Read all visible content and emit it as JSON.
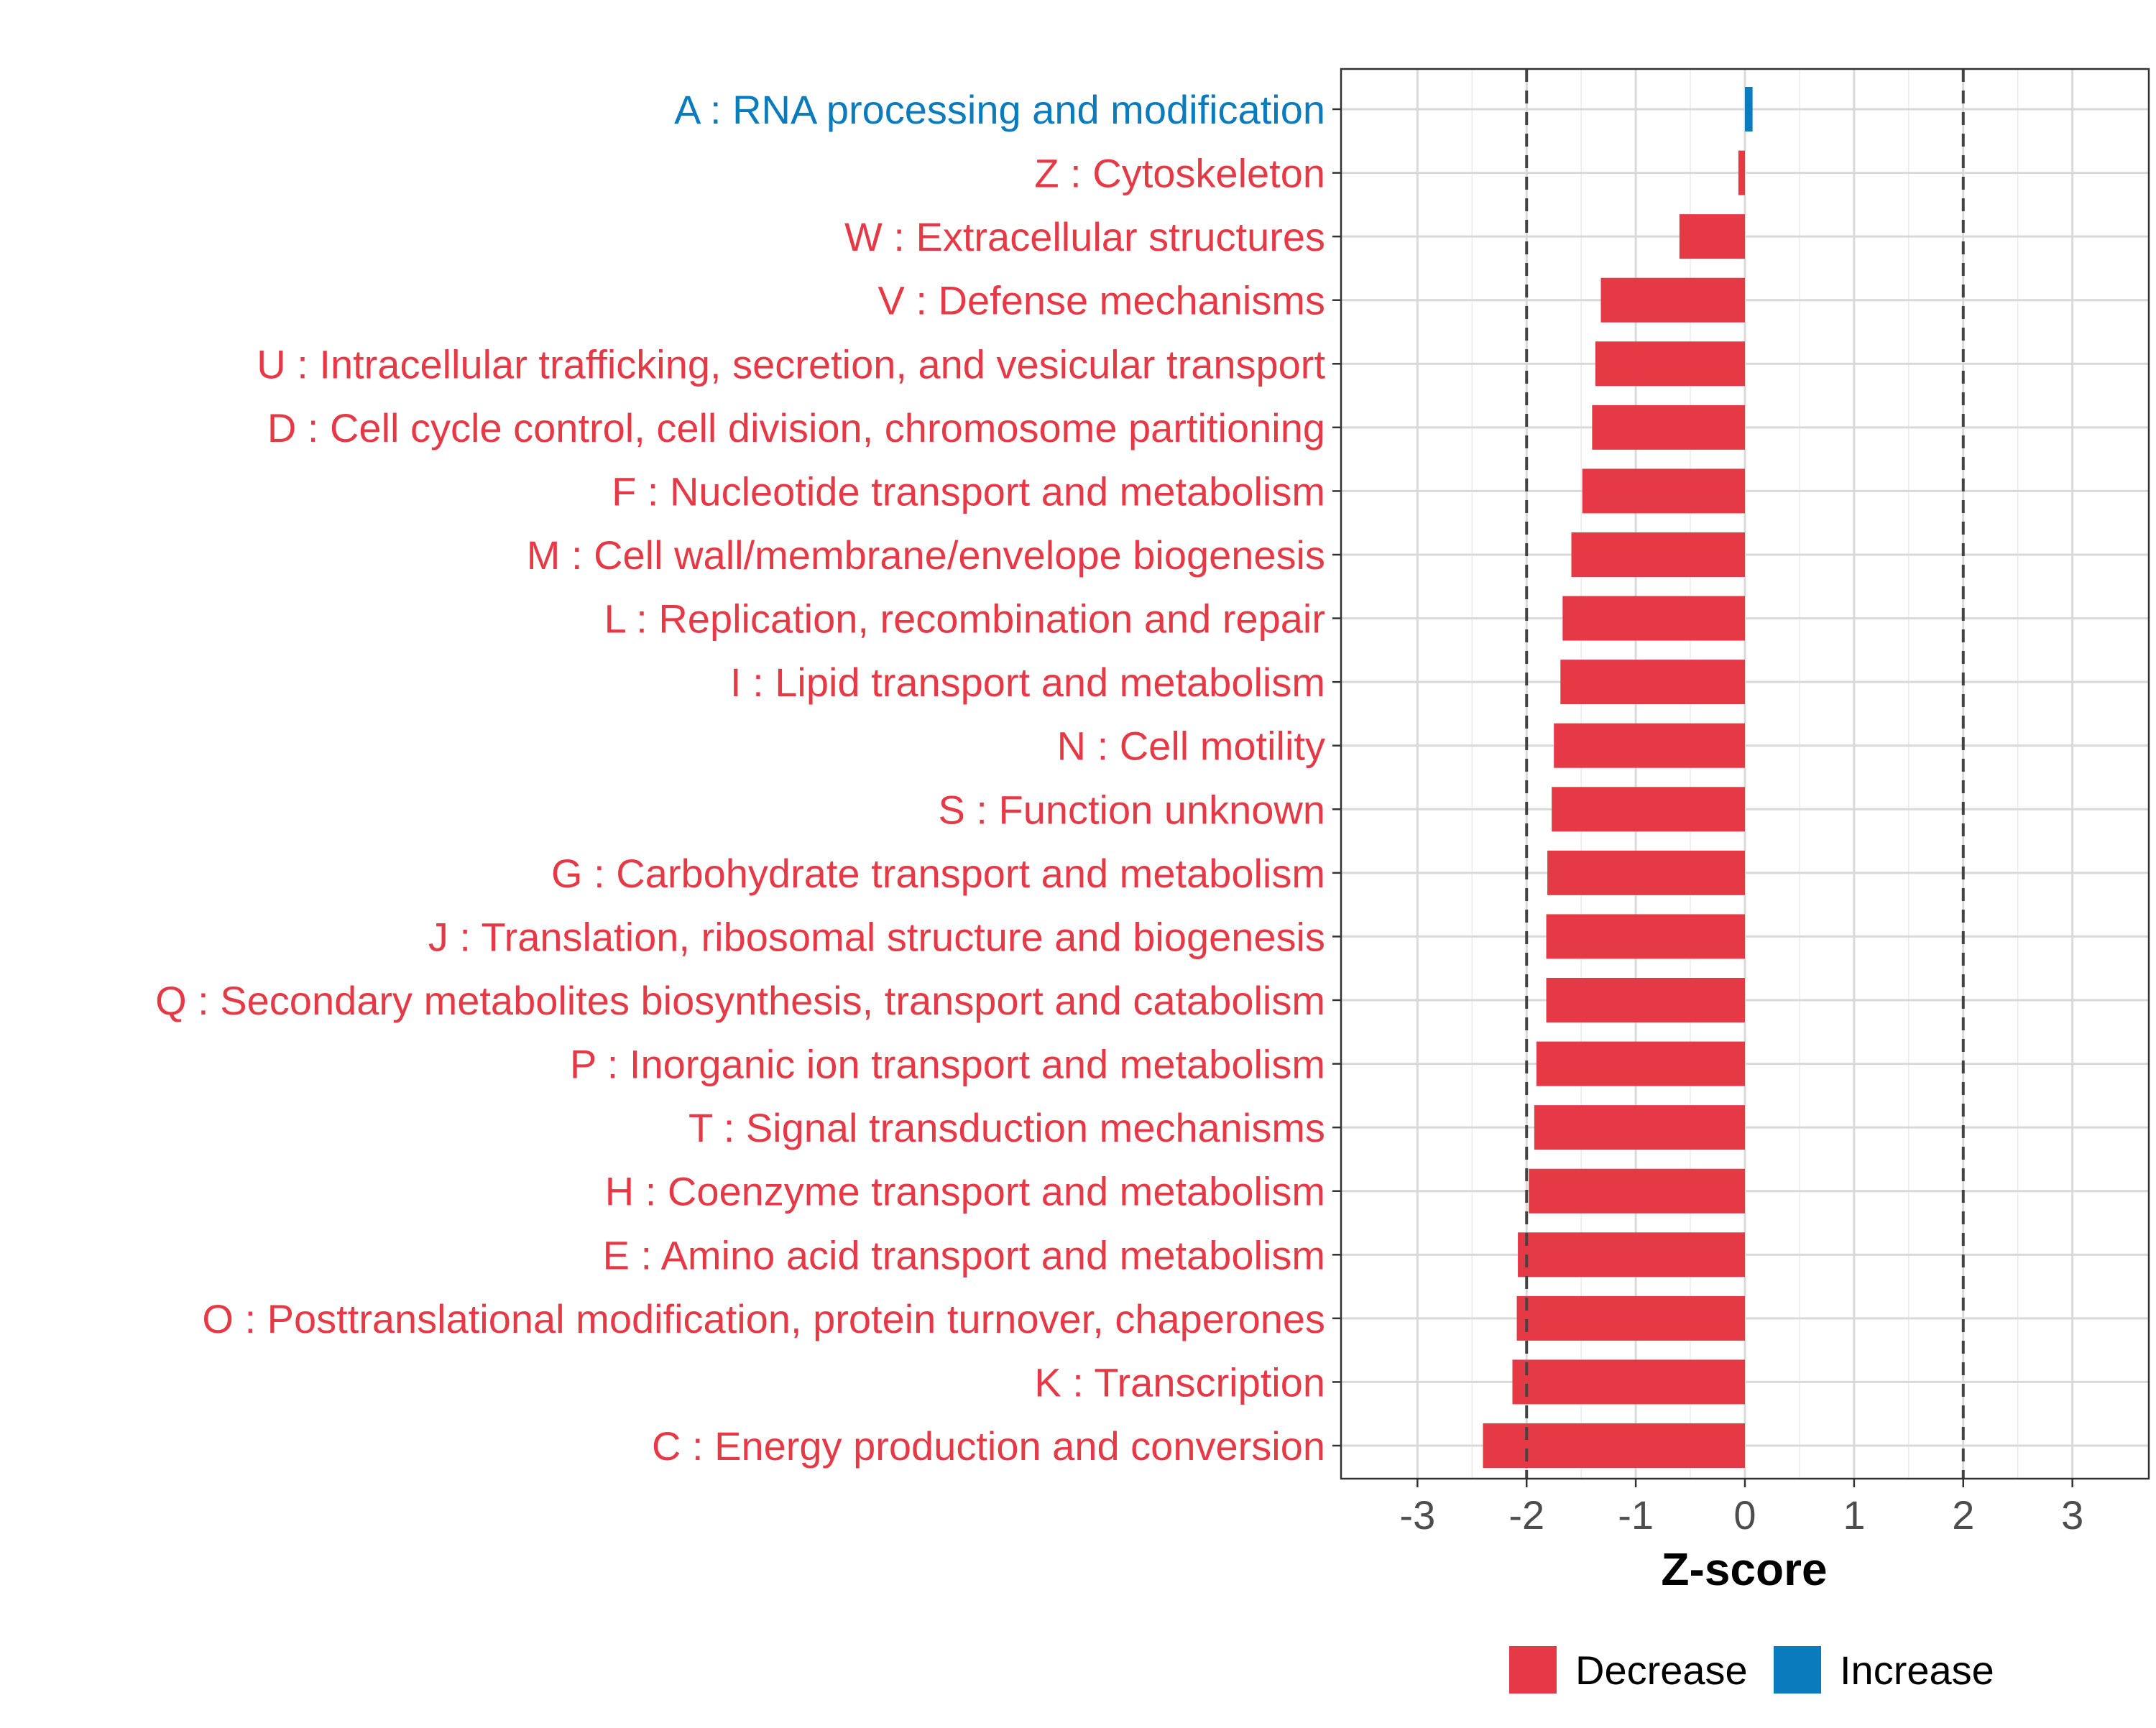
{
  "chart_data": {
    "type": "bar",
    "orientation": "horizontal",
    "xlabel": "Z-score",
    "xlim": [
      -3.7,
      3.7
    ],
    "xticks": [
      -3,
      -2,
      -1,
      0,
      1,
      2,
      3
    ],
    "reference_lines": [
      -2,
      2
    ],
    "grid": true,
    "colors": {
      "Decrease": "#e63946",
      "Increase": "#0a7bbd"
    },
    "legend": {
      "position": "bottom",
      "entries": [
        "Decrease",
        "Increase"
      ]
    },
    "categories": [
      "A : RNA processing and modification",
      "Z : Cytoskeleton",
      "W : Extracellular structures",
      "V : Defense mechanisms",
      "U : Intracellular trafficking, secretion, and vesicular transport",
      "D : Cell cycle control, cell division, chromosome partitioning",
      "F : Nucleotide transport and metabolism",
      "M : Cell wall/membrane/envelope biogenesis",
      "L : Replication, recombination and repair",
      "I : Lipid transport and metabolism",
      "N : Cell motility",
      "S : Function unknown",
      "G : Carbohydrate transport and metabolism",
      "J : Translation, ribosomal structure and biogenesis",
      "Q : Secondary metabolites biosynthesis, transport and catabolism",
      "P : Inorganic ion transport and metabolism",
      "T : Signal transduction mechanisms",
      "H : Coenzyme transport and metabolism",
      "E : Amino acid transport and metabolism",
      "O : Posttranslational modification, protein turnover, chaperones",
      "K : Transcription",
      "C : Energy production and conversion"
    ],
    "values": [
      0.07,
      -0.06,
      -0.6,
      -1.32,
      -1.37,
      -1.4,
      -1.49,
      -1.59,
      -1.67,
      -1.69,
      -1.75,
      -1.77,
      -1.81,
      -1.82,
      -1.82,
      -1.91,
      -1.93,
      -1.98,
      -2.08,
      -2.09,
      -2.13,
      -2.4
    ],
    "direction": [
      "Increase",
      "Decrease",
      "Decrease",
      "Decrease",
      "Decrease",
      "Decrease",
      "Decrease",
      "Decrease",
      "Decrease",
      "Decrease",
      "Decrease",
      "Decrease",
      "Decrease",
      "Decrease",
      "Decrease",
      "Decrease",
      "Decrease",
      "Decrease",
      "Decrease",
      "Decrease",
      "Decrease",
      "Decrease"
    ]
  }
}
